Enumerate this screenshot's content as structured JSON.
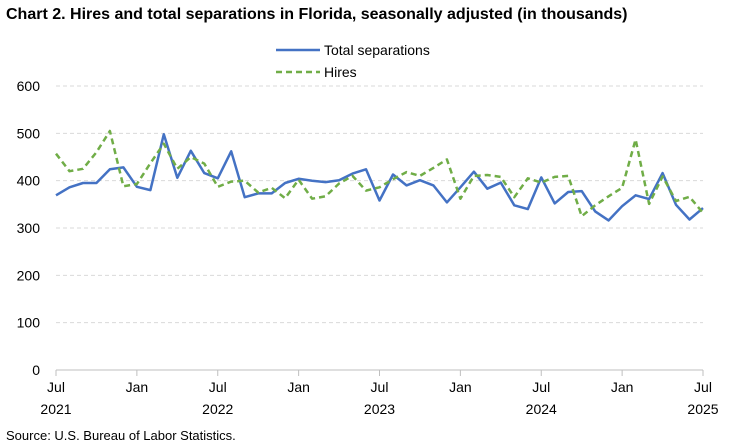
{
  "title": "Chart 2. Hires and total separations in Florida, seasonally adjusted (in thousands)",
  "source": "Source: U.S. Bureau of Labor Statistics.",
  "chart_data": {
    "type": "line",
    "title": "Chart 2. Hires and total separations in Florida, seasonally adjusted (in thousands)",
    "xlabel": "",
    "ylabel": "",
    "ylim": [
      0,
      600
    ],
    "yticks": [
      0,
      100,
      200,
      300,
      400,
      500,
      600
    ],
    "grid": true,
    "legend_position": "top-center",
    "x_ticks": [
      {
        "index": 0,
        "month": "Jul",
        "year": "2021"
      },
      {
        "index": 6,
        "month": "Jan",
        "year": ""
      },
      {
        "index": 12,
        "month": "Jul",
        "year": "2022"
      },
      {
        "index": 18,
        "month": "Jan",
        "year": ""
      },
      {
        "index": 24,
        "month": "Jul",
        "year": "2023"
      },
      {
        "index": 30,
        "month": "Jan",
        "year": ""
      },
      {
        "index": 36,
        "month": "Jul",
        "year": "2024"
      },
      {
        "index": 42,
        "month": "Jan",
        "year": ""
      },
      {
        "index": 48,
        "month": "Jul",
        "year": "2025"
      }
    ],
    "x": [
      "2021-07",
      "2021-08",
      "2021-09",
      "2021-10",
      "2021-11",
      "2021-12",
      "2022-01",
      "2022-02",
      "2022-03",
      "2022-04",
      "2022-05",
      "2022-06",
      "2022-07",
      "2022-08",
      "2022-09",
      "2022-10",
      "2022-11",
      "2022-12",
      "2023-01",
      "2023-02",
      "2023-03",
      "2023-04",
      "2023-05",
      "2023-06",
      "2023-07",
      "2023-08",
      "2023-09",
      "2023-10",
      "2023-11",
      "2023-12",
      "2024-01",
      "2024-02",
      "2024-03",
      "2024-04",
      "2024-05",
      "2024-06",
      "2024-07",
      "2024-08",
      "2024-09",
      "2024-10",
      "2024-11",
      "2024-12",
      "2025-01",
      "2025-02",
      "2025-03",
      "2025-04",
      "2025-05",
      "2025-06",
      "2025-07"
    ],
    "series": [
      {
        "name": "Total separations",
        "color": "#4472C4",
        "style": "solid",
        "values": [
          369,
          386,
          395,
          395,
          424,
          428,
          387,
          380,
          498,
          406,
          463,
          416,
          405,
          462,
          365,
          373,
          373,
          395,
          404,
          400,
          397,
          401,
          415,
          424,
          358,
          413,
          390,
          401,
          390,
          354,
          386,
          419,
          383,
          396,
          348,
          340,
          407,
          352,
          376,
          378,
          335,
          316,
          346,
          369,
          361,
          416,
          349,
          318,
          342
        ]
      },
      {
        "name": "Hires",
        "color": "#70AD47",
        "style": "dashed",
        "values": [
          457,
          420,
          425,
          460,
          505,
          388,
          393,
          437,
          478,
          425,
          450,
          436,
          387,
          398,
          400,
          375,
          385,
          363,
          402,
          362,
          367,
          394,
          410,
          379,
          386,
          403,
          418,
          410,
          427,
          445,
          362,
          410,
          412,
          408,
          365,
          405,
          396,
          408,
          410,
          325,
          348,
          367,
          385,
          487,
          351,
          409,
          357,
          366,
          332
        ]
      }
    ]
  }
}
